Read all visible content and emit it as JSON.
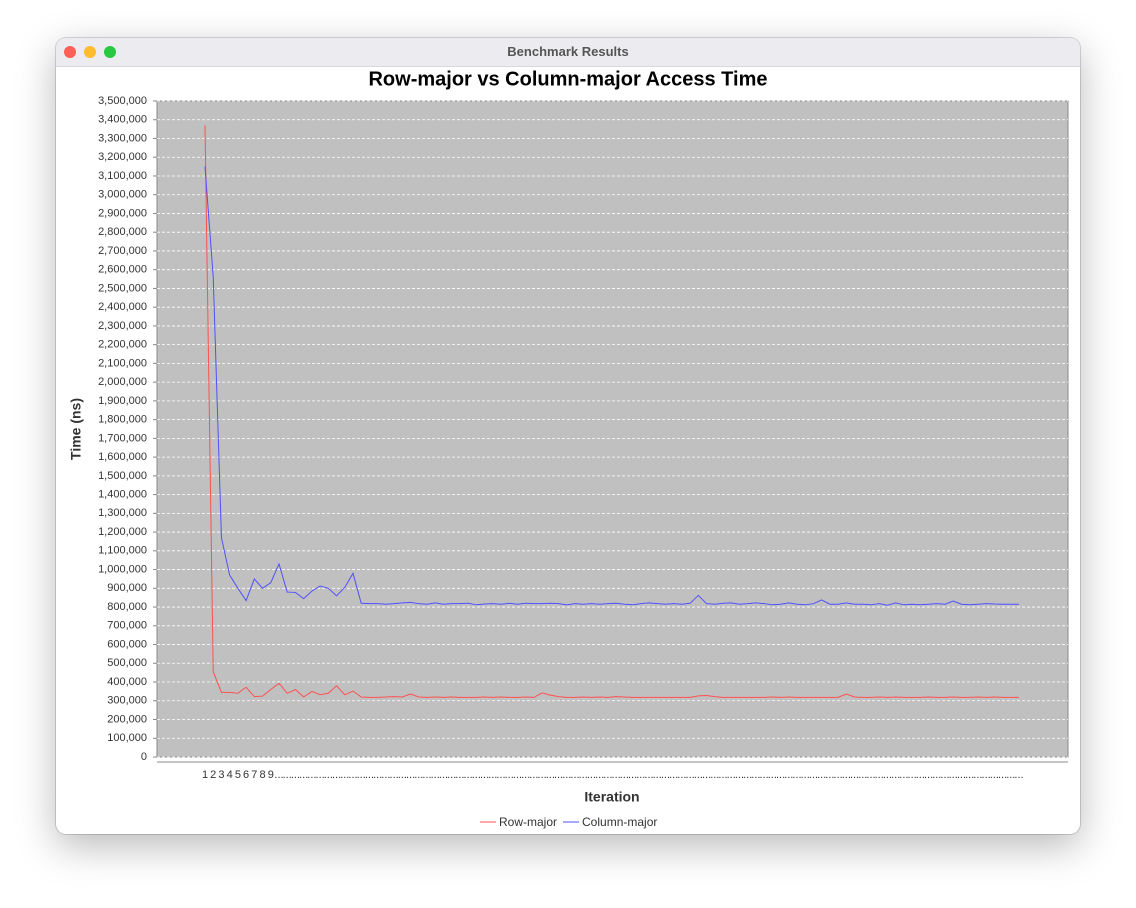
{
  "window_title": "Benchmark Results",
  "chart_data": {
    "type": "line",
    "title": "Row-major vs Column-major Access Time",
    "x_label": "Iteration",
    "y_label": "Time (ns)",
    "categories": [
      "1",
      "2",
      "3",
      "4",
      "5",
      "6",
      "7",
      "8",
      "9",
      "...",
      "...",
      "...",
      "...",
      "...",
      "...",
      "...",
      "...",
      "...",
      "...",
      "...",
      "...",
      "...",
      "...",
      "...",
      "...",
      "...",
      "...",
      "...",
      "...",
      "...",
      "...",
      "...",
      "...",
      "...",
      "...",
      "...",
      "...",
      "...",
      "...",
      "...",
      "...",
      "...",
      "...",
      "...",
      "...",
      "...",
      "...",
      "...",
      "...",
      "...",
      "...",
      "...",
      "...",
      "...",
      "...",
      "...",
      "...",
      "...",
      "...",
      "...",
      "...",
      "...",
      "...",
      "...",
      "...",
      "...",
      "...",
      "...",
      "...",
      "...",
      "...",
      "...",
      "...",
      "...",
      "...",
      "...",
      "...",
      "...",
      "...",
      "...",
      "...",
      "...",
      "...",
      "...",
      "...",
      "...",
      "...",
      "...",
      "...",
      "...",
      "...",
      "...",
      "...",
      "...",
      "...",
      "...",
      "...",
      "...",
      "...",
      "..."
    ],
    "series": [
      {
        "name": "Row-major",
        "color": "#ff5050",
        "values": [
          3370000,
          455000,
          345000,
          345000,
          340000,
          372000,
          322000,
          325000,
          360000,
          393000,
          340000,
          360000,
          320000,
          350000,
          332000,
          340000,
          380000,
          332000,
          352000,
          320000,
          318000,
          318000,
          320000,
          322000,
          320000,
          336000,
          320000,
          318000,
          320000,
          318000,
          320000,
          318000,
          318000,
          318000,
          320000,
          318000,
          320000,
          318000,
          318000,
          320000,
          318000,
          342000,
          330000,
          322000,
          318000,
          318000,
          320000,
          318000,
          320000,
          318000,
          322000,
          320000,
          318000,
          318000,
          318000,
          318000,
          318000,
          318000,
          318000,
          318000,
          326000,
          328000,
          322000,
          318000,
          318000,
          318000,
          318000,
          318000,
          318000,
          320000,
          318000,
          320000,
          318000,
          318000,
          318000,
          318000,
          318000,
          318000,
          336000,
          320000,
          318000,
          318000,
          320000,
          318000,
          320000,
          318000,
          318000,
          318000,
          320000,
          318000,
          318000,
          320000,
          318000,
          318000,
          320000,
          318000,
          320000,
          318000,
          318000,
          318000
        ]
      },
      {
        "name": "Column-major",
        "color": "#5050ff",
        "values": [
          3150000,
          2560000,
          1170000,
          970000,
          900000,
          835000,
          950000,
          900000,
          930000,
          1030000,
          880000,
          878000,
          845000,
          885000,
          912000,
          900000,
          860000,
          905000,
          980000,
          820000,
          818000,
          818000,
          815000,
          818000,
          822000,
          825000,
          818000,
          815000,
          822000,
          815000,
          818000,
          818000,
          820000,
          812000,
          816000,
          818000,
          815000,
          820000,
          815000,
          820000,
          818000,
          818000,
          820000,
          818000,
          812000,
          818000,
          815000,
          818000,
          815000,
          818000,
          820000,
          815000,
          812000,
          818000,
          822000,
          818000,
          815000,
          818000,
          815000,
          820000,
          862000,
          818000,
          815000,
          820000,
          822000,
          815000,
          818000,
          822000,
          818000,
          812000,
          815000,
          822000,
          815000,
          812000,
          818000,
          838000,
          815000,
          815000,
          822000,
          815000,
          815000,
          812000,
          818000,
          810000,
          822000,
          812000,
          815000,
          812000,
          815000,
          818000,
          815000,
          832000,
          815000,
          812000,
          815000,
          818000,
          816000,
          815000,
          815000,
          815000
        ]
      }
    ],
    "ylim": [
      0,
      3500000
    ],
    "yticks": [
      0,
      {
        "value": 100000,
        "label": "100,000"
      },
      {
        "value": 200000,
        "label": "200,000"
      },
      {
        "value": 300000,
        "label": "300,000"
      },
      {
        "value": 400000,
        "label": "400,000"
      },
      {
        "value": 500000,
        "label": "500,000"
      },
      {
        "value": 600000,
        "label": "600,000"
      },
      {
        "value": 700000,
        "label": "700,000"
      },
      {
        "value": 800000,
        "label": "800,000"
      },
      {
        "value": 900000,
        "label": "900,000"
      },
      {
        "value": 1000000,
        "label": "1,000,000"
      },
      {
        "value": 1100000,
        "label": "1,100,000"
      },
      {
        "value": 1200000,
        "label": "1,200,000"
      },
      {
        "value": 1300000,
        "label": "1,300,000"
      },
      {
        "value": 1400000,
        "label": "1,400,000"
      },
      {
        "value": 1500000,
        "label": "1,500,000"
      },
      {
        "value": 1600000,
        "label": "1,600,000"
      },
      {
        "value": 1700000,
        "label": "1,700,000"
      },
      {
        "value": 1800000,
        "label": "1,800,000"
      },
      {
        "value": 1900000,
        "label": "1,900,000"
      },
      {
        "value": 2000000,
        "label": "2,000,000"
      },
      {
        "value": 2100000,
        "label": "2,100,000"
      },
      {
        "value": 2200000,
        "label": "2,200,000"
      },
      {
        "value": 2300000,
        "label": "2,300,000"
      },
      {
        "value": 2400000,
        "label": "2,400,000"
      },
      {
        "value": 2500000,
        "label": "2,500,000"
      },
      {
        "value": 2600000,
        "label": "2,600,000"
      },
      {
        "value": 2700000,
        "label": "2,700,000"
      },
      {
        "value": 2800000,
        "label": "2,800,000"
      },
      {
        "value": 2900000,
        "label": "2,900,000"
      },
      {
        "value": 3000000,
        "label": "3,000,000"
      },
      {
        "value": 3100000,
        "label": "3,100,000"
      },
      {
        "value": 3200000,
        "label": "3,200,000"
      },
      {
        "value": 3300000,
        "label": "3,300,000"
      },
      {
        "value": 3400000,
        "label": "3,400,000"
      },
      {
        "value": 3500000,
        "label": "3,500,000"
      }
    ],
    "grid": true,
    "legend": "bottom"
  }
}
